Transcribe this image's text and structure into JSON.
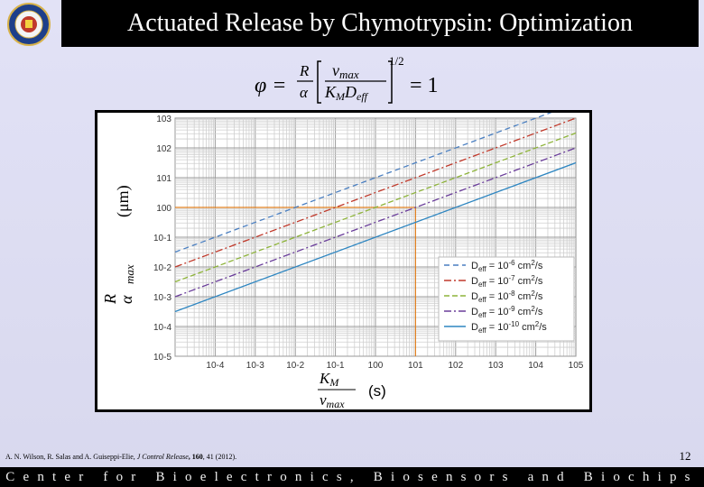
{
  "slide": {
    "title": "Actuated Release by Chymotrypsin:  Optimization",
    "page_number": "12",
    "footer": "Center for Bioelectronics, Biosensors and Biochips",
    "colors": {
      "header_bg": "#000000",
      "slide_bg": "#dcdcf0",
      "footer_bg": "#000000"
    }
  },
  "logo": {
    "icon": "university-seal-icon"
  },
  "equation": {
    "lhs": "φ =",
    "frac_R": "R",
    "frac_alpha": "α",
    "vmax": "v",
    "vmax_sub": "max",
    "km": "K",
    "km_sub": "M",
    "deff": "D",
    "deff_sub": "eff",
    "power": "1/2",
    "rhs": "= 1"
  },
  "citation": {
    "authors": "A. N. Wilson, R. Salas and A. Guiseppi-Elie, ",
    "journal": "J Control Release",
    "volume": ", 160",
    "pages": ", 41 (2012)."
  },
  "chart_data": {
    "type": "line",
    "log_x": true,
    "log_y": true,
    "grid": true,
    "xlim": [
      1e-05,
      100000
    ],
    "ylim": [
      1e-05,
      1000
    ],
    "x_tick_labels": [
      "10-4",
      "10-3",
      "10-2",
      "10-1",
      "100",
      "101",
      "102",
      "103",
      "104",
      "105"
    ],
    "y_tick_labels": [
      "10-5",
      "10-4",
      "10-3",
      "10-2",
      "10-1",
      "100",
      "101",
      "102",
      "103"
    ],
    "xlabel": {
      "km": "K",
      "km_sub": "M",
      "vmax": "v",
      "vmax_sub": "max",
      "unit": "(s)"
    },
    "ylabel": {
      "R": "R",
      "alpha": "α",
      "sub": "max",
      "unit": "(μm)"
    },
    "legend_position": "bottom-right",
    "series": [
      {
        "name": "D",
        "sub": "eff",
        "label": " = 10",
        "exp": "-6",
        "unit": " cm",
        "unit_exp": "2",
        "tail": "/s",
        "color": "#4a7fc1",
        "dash": "6,4",
        "x": [
          1e-05,
          100000
        ],
        "y": [
          0.0316,
          3162
        ]
      },
      {
        "name": "D",
        "sub": "eff",
        "label": " = 10",
        "exp": "-7",
        "unit": " cm",
        "unit_exp": "2",
        "tail": "/s",
        "color": "#c0392b",
        "dash": "8,3,2,3",
        "x": [
          1e-05,
          100000
        ],
        "y": [
          0.01,
          1000
        ]
      },
      {
        "name": "D",
        "sub": "eff",
        "label": " = 10",
        "exp": "-8",
        "unit": " cm",
        "unit_exp": "2",
        "tail": "/s",
        "color": "#8db33a",
        "dash": "6,3",
        "x": [
          1e-05,
          100000
        ],
        "y": [
          0.00316,
          316
        ]
      },
      {
        "name": "D",
        "sub": "eff",
        "label": " = 10",
        "exp": "-9",
        "unit": " cm",
        "unit_exp": "2",
        "tail": "/s",
        "color": "#6a3d9a",
        "dash": "8,3,2,3",
        "x": [
          1e-05,
          100000
        ],
        "y": [
          0.001,
          100
        ]
      },
      {
        "name": "D",
        "sub": "eff",
        "label": " = 10",
        "exp": "-10",
        "unit": " cm",
        "unit_exp": "2",
        "tail": "/s",
        "color": "#2e86c1",
        "dash": "",
        "x": [
          1e-05,
          100000
        ],
        "y": [
          0.000316,
          31.6
        ]
      }
    ],
    "reference_lines": {
      "x": 10,
      "y": 1,
      "color": "#e08020"
    }
  }
}
